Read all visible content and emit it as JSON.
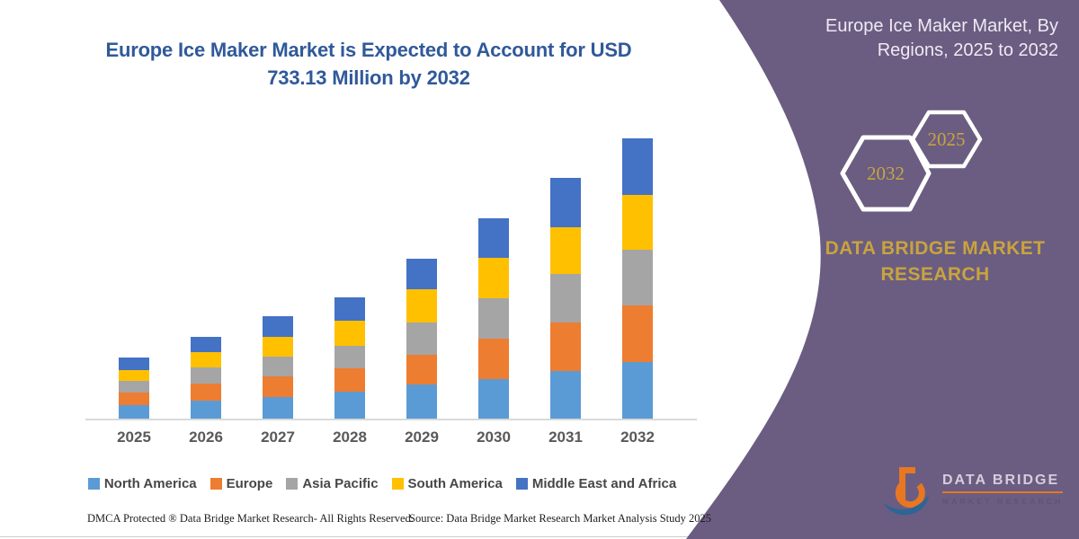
{
  "colors": {
    "purple_panel": "#6A5D81",
    "title_blue": "#30599A",
    "gold": "#C9A33E",
    "axis_line": "#D9D9D9",
    "axis_label": "#595959",
    "legend_text": "#474747"
  },
  "header": {
    "title_line1": "Europe Ice Maker Market is Expected to Account for USD",
    "title_line2": "733.13 Million by 2032"
  },
  "chart_data": {
    "type": "bar",
    "stacked": true,
    "title": "Europe Ice Maker Market is Expected to Account for USD 733.13 Million by 2032",
    "value_unit": "USD Million",
    "categories": [
      "2025",
      "2026",
      "2027",
      "2028",
      "2029",
      "2030",
      "2031",
      "2032"
    ],
    "series": [
      {
        "name": "North America",
        "color": "#5B9BD5",
        "values": [
          36.2,
          47.9,
          57.3,
          70.5,
          88.6,
          102.7,
          123.8,
          147.1
        ]
      },
      {
        "name": "Europe",
        "color": "#ED7D31",
        "values": [
          32.2,
          44.7,
          52.4,
          61.1,
          78.3,
          105.8,
          127.6,
          148.8
        ]
      },
      {
        "name": "Asia Pacific",
        "color": "#A5A5A5",
        "values": [
          29.8,
          41.6,
          53.3,
          58.8,
          84.6,
          107.4,
          126.9,
          145.0
        ]
      },
      {
        "name": "South America",
        "color": "#FFC000",
        "values": [
          28.2,
          40.7,
          51.0,
          65.1,
          87.7,
          104.1,
          122.9,
          143.4
        ]
      },
      {
        "name": "Middle East and Africa",
        "color": "#4472C4",
        "values": [
          33.6,
          39.2,
          54.1,
          62.7,
          79.2,
          105.0,
          129.3,
          148.8
        ]
      }
    ],
    "xlabel": "",
    "ylabel": "",
    "ylim": [
      0,
      733.13
    ],
    "y_axis_visible": false,
    "grid": false,
    "legend_position": "bottom"
  },
  "panel": {
    "title_line1": "Europe Ice Maker Market, By",
    "title_line2": "Regions, 2025 to 2032",
    "hex_back_year": "2032",
    "hex_front_year": "2025",
    "brand_line1": "DATA BRIDGE MARKET",
    "brand_line2": "RESEARCH"
  },
  "logo": {
    "name": "DATA BRIDGE",
    "subtitle": "MARKET RESEARCH"
  },
  "footer": {
    "dmca": "DMCA Protected ® Data Bridge Market Research-  All Rights Reserved.",
    "source": "Source: Data Bridge Market Research  Market Analysis Study 2025"
  }
}
